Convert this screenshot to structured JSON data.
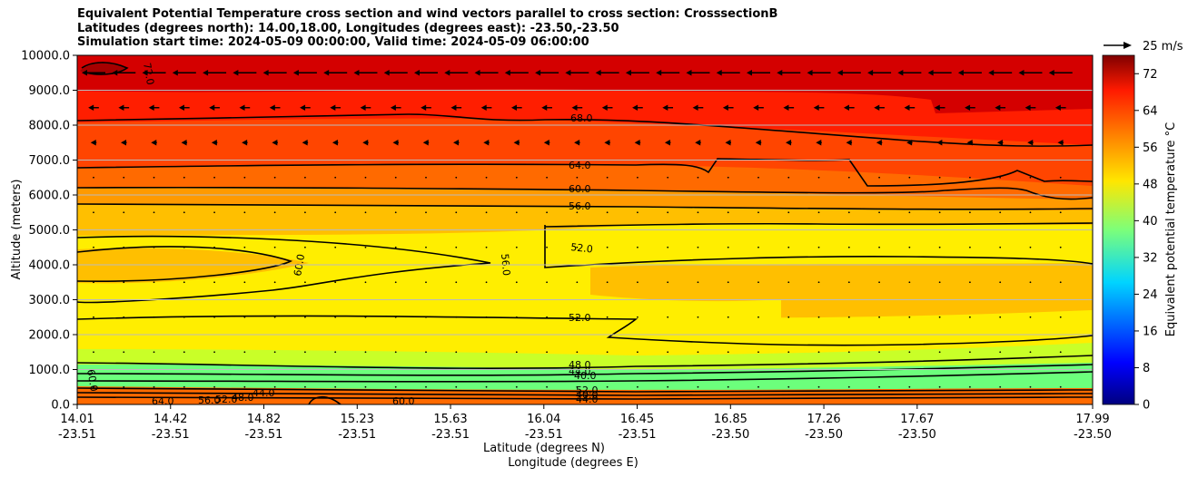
{
  "chart_data": {
    "type": "contourf",
    "title_lines": [
      "Equivalent Potential Temperature cross section and wind vectors parallel to cross section: CrosssectionB",
      "Latitudes (degrees north): 14.00,18.00, Longitudes (degrees east): -23.50,-23.50",
      "Simulation start time: 2024-05-09 00:00:00, Valid time: 2024-05-09 06:00:00"
    ],
    "ylabel": "Altitude (meters)",
    "xlabel": "Latitude (degrees N)",
    "xlabel2": "Longitude (degrees E)",
    "ylim": [
      0,
      10000
    ],
    "yticks": [
      "0.0",
      "1000.0",
      "2000.0",
      "3000.0",
      "4000.0",
      "5000.0",
      "6000.0",
      "7000.0",
      "8000.0",
      "9000.0",
      "10000.0"
    ],
    "xticks_lat": [
      "14.01",
      "14.42",
      "14.82",
      "15.23",
      "15.63",
      "16.04",
      "16.45",
      "16.85",
      "17.26",
      "17.67",
      "17.99"
    ],
    "xticks_lon": [
      "-23.51",
      "-23.51",
      "-23.51",
      "-23.51",
      "-23.51",
      "-23.51",
      "-23.51",
      "-23.50",
      "-23.50",
      "-23.50",
      "-23.50"
    ],
    "colorbar": {
      "label": "Equivalent potential temperature °C",
      "range": [
        0,
        76
      ],
      "ticks": [
        "0",
        "8",
        "16",
        "24",
        "32",
        "40",
        "48",
        "56",
        "64",
        "72"
      ]
    },
    "quiver_key": {
      "label": "25 m/s",
      "value": 25
    },
    "contour_labels": [
      "72.0",
      "68.0",
      "64.0",
      "60.0",
      "56.0",
      "52.0",
      "60.0",
      "56.0",
      "52.0",
      "48.0",
      "44.0",
      "40.0",
      "44.0",
      "48.0",
      "52.0",
      "56.0",
      "60.0",
      "64.0",
      "60.0",
      "52.0",
      "40.0",
      "44.0"
    ],
    "contour_levels": [
      {
        "level": 72,
        "alt": 9600
      },
      {
        "level": 68,
        "alt": 8100
      },
      {
        "level": 64,
        "alt": 6850
      },
      {
        "level": 60,
        "alt": 6200
      },
      {
        "level": 56,
        "alt": 5700
      },
      {
        "level": 52,
        "alt": 5000
      },
      {
        "level": 52,
        "alt": 2500
      },
      {
        "level": 48,
        "alt": 1150
      },
      {
        "level": 44,
        "alt": 900
      },
      {
        "level": 40,
        "alt": 700
      }
    ]
  }
}
